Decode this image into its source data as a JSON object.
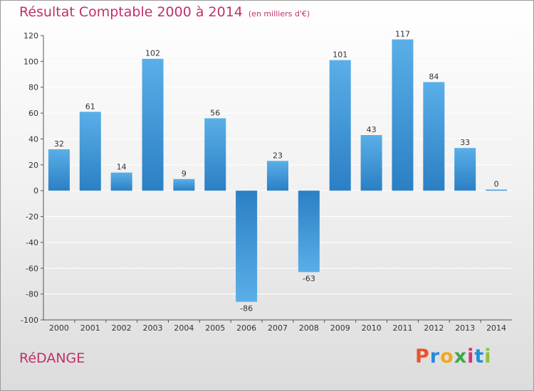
{
  "title": "Résultat Comptable 2000 à 2014",
  "subtitle": "(en milliers d'€)",
  "commune": "RéDANGE",
  "logo": {
    "letters": [
      "P",
      "r",
      "o",
      "x",
      "i",
      "t",
      "i"
    ],
    "colors": [
      "#e9542b",
      "#2a8ad6",
      "#f1a81c",
      "#3aa84a",
      "#d9307a",
      "#1e90d8",
      "#8cc43c"
    ]
  },
  "colors": {
    "bar_light": "#5aafe8",
    "bar_dark": "#2b7fc4",
    "accent": "#c0306b"
  },
  "chart_data": {
    "type": "bar",
    "title": "Résultat Comptable 2000 à 2014",
    "subtitle": "(en milliers d'€)",
    "categories": [
      "2000",
      "2001",
      "2002",
      "2003",
      "2004",
      "2005",
      "2006",
      "2007",
      "2008",
      "2009",
      "2010",
      "2011",
      "2012",
      "2013",
      "2014"
    ],
    "values": [
      32,
      61,
      14,
      102,
      9,
      56,
      -86,
      23,
      -63,
      101,
      43,
      117,
      84,
      33,
      0
    ],
    "value_labels": [
      "32",
      "61",
      "14",
      "102",
      "9",
      "56",
      "-86",
      "23",
      "-63",
      "101",
      "43",
      "117",
      "84",
      "33",
      "0"
    ],
    "ylim": [
      -100,
      120
    ],
    "yticks": [
      120,
      100,
      80,
      60,
      40,
      20,
      0,
      -20,
      -40,
      -60,
      -80,
      -100
    ],
    "ytick_labels": [
      "120",
      "100",
      "80",
      "60",
      "40",
      "20",
      "0",
      "-20",
      "-40",
      "-60",
      "-80",
      "-100"
    ],
    "grid": "horizontal",
    "legend": "none"
  }
}
